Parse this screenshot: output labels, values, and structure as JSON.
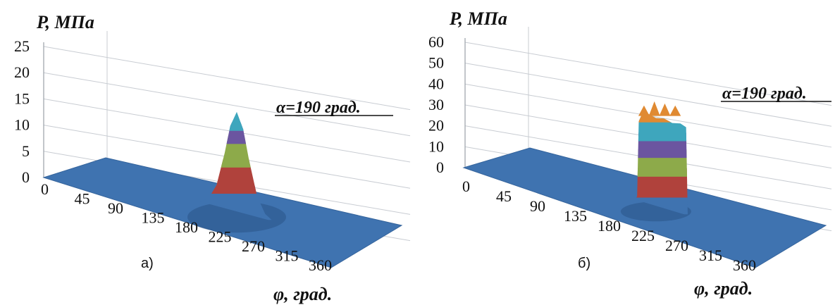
{
  "chart_data": [
    {
      "type": "surface",
      "panel_label": "а)",
      "zlabel": "P, МПа",
      "xlabel": "φ, град.",
      "annotation": "α=190 град.",
      "z_ticks": [
        "0",
        "5",
        "10",
        "15",
        "20",
        "25"
      ],
      "zlim": [
        0,
        25
      ],
      "x_ticks": [
        "0",
        "45",
        "90",
        "135",
        "180",
        "225",
        "270",
        "315",
        "360"
      ],
      "xlim": [
        0,
        360
      ],
      "peak_phi": 200,
      "peak_value": 19,
      "profile": {
        "phi": [
          155,
          165,
          175,
          185,
          192,
          200,
          208,
          215,
          225,
          235,
          245
        ],
        "value": [
          0,
          1,
          4,
          10.5,
          16,
          19,
          16,
          10.5,
          4,
          1,
          0
        ]
      },
      "color_bands": [
        {
          "from": 0,
          "to": 5,
          "color": "#3f73b0"
        },
        {
          "from": 5,
          "to": 10,
          "color": "#b0423c"
        },
        {
          "from": 10,
          "to": 14.5,
          "color": "#8daa4a"
        },
        {
          "from": 14.5,
          "to": 17,
          "color": "#6b55a0"
        },
        {
          "from": 17,
          "to": 25,
          "color": "#3ea6bd"
        }
      ],
      "grid": true
    },
    {
      "type": "surface",
      "panel_label": "б)",
      "zlabel": "P, МПа",
      "xlabel": "φ, град.",
      "annotation": "α=190 град.",
      "z_ticks": [
        "0",
        "10",
        "20",
        "30",
        "40",
        "50",
        "60"
      ],
      "zlim": [
        0,
        60
      ],
      "x_ticks": [
        "0",
        "45",
        "90",
        "135",
        "180",
        "225",
        "270",
        "315",
        "360"
      ],
      "xlim": [
        0,
        360
      ],
      "profile": {
        "phi": [
          170,
          172,
          174,
          178,
          185,
          195,
          205,
          215,
          225,
          232,
          234
        ],
        "value": [
          0,
          2,
          38,
          42,
          43,
          42,
          43,
          42,
          43,
          42,
          0
        ]
      },
      "spike_values": [
        46,
        48,
        47,
        46
      ],
      "color_bands": [
        {
          "from": 0,
          "to": 8,
          "color": "#3f73b0"
        },
        {
          "from": 8,
          "to": 18,
          "color": "#b0423c"
        },
        {
          "from": 18,
          "to": 27,
          "color": "#8daa4a"
        },
        {
          "from": 27,
          "to": 35,
          "color": "#6b55a0"
        },
        {
          "from": 35,
          "to": 44,
          "color": "#3ea6bd"
        },
        {
          "from": 44,
          "to": 60,
          "color": "#e08a32"
        }
      ],
      "grid": true
    }
  ]
}
